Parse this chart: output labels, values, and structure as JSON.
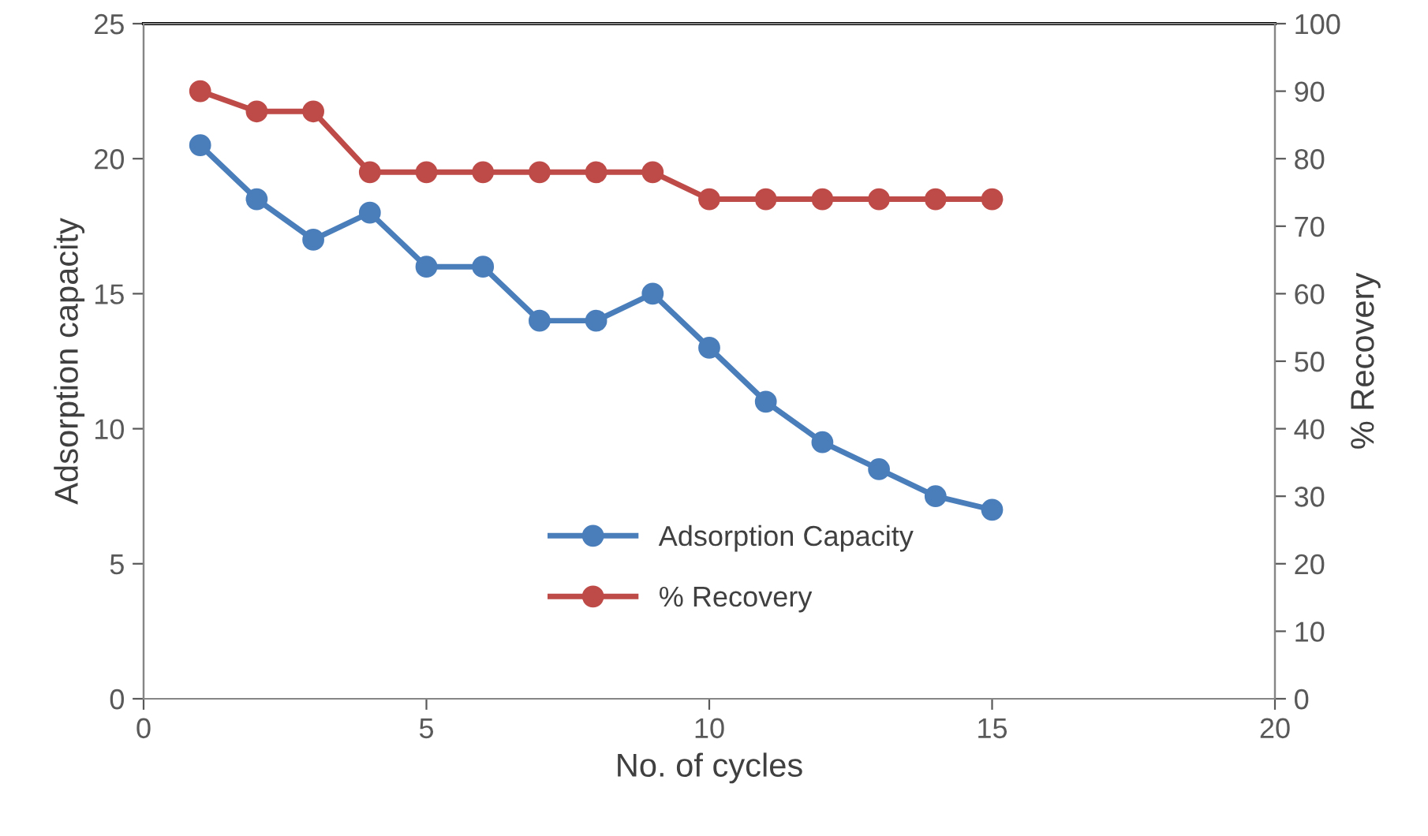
{
  "chart_data": {
    "type": "line",
    "xlabel": "No. of cycles",
    "ylabel": "Adsorption capacity",
    "y2label": "% Recovery",
    "x": [
      1,
      2,
      3,
      4,
      5,
      6,
      7,
      8,
      9,
      10,
      11,
      12,
      13,
      14,
      15
    ],
    "series": [
      {
        "name": "Adsorption Capacity",
        "color": "#4a7ebb",
        "values": [
          20.5,
          18.5,
          17,
          18,
          16,
          16,
          14,
          14,
          15,
          13,
          11,
          9.5,
          8.5,
          7.5,
          7
        ]
      },
      {
        "name": "% Recovery",
        "color": "#be4b48",
        "axis": "y2",
        "values": [
          90,
          87,
          87,
          78,
          78,
          78,
          78,
          78,
          78,
          74,
          74,
          74,
          74,
          74,
          74
        ]
      }
    ],
    "xlim": [
      0,
      20
    ],
    "xticks": [
      0,
      5,
      10,
      15,
      20
    ],
    "ylim": [
      0,
      25
    ],
    "yticks": [
      0,
      5,
      10,
      15,
      20,
      25
    ],
    "y2lim": [
      0,
      100
    ],
    "y2ticks": [
      0,
      10,
      20,
      30,
      40,
      50,
      60,
      70,
      80,
      90,
      100
    ],
    "grid": false,
    "legend": "bottom",
    "marker": "circle",
    "line_style": "solid"
  }
}
